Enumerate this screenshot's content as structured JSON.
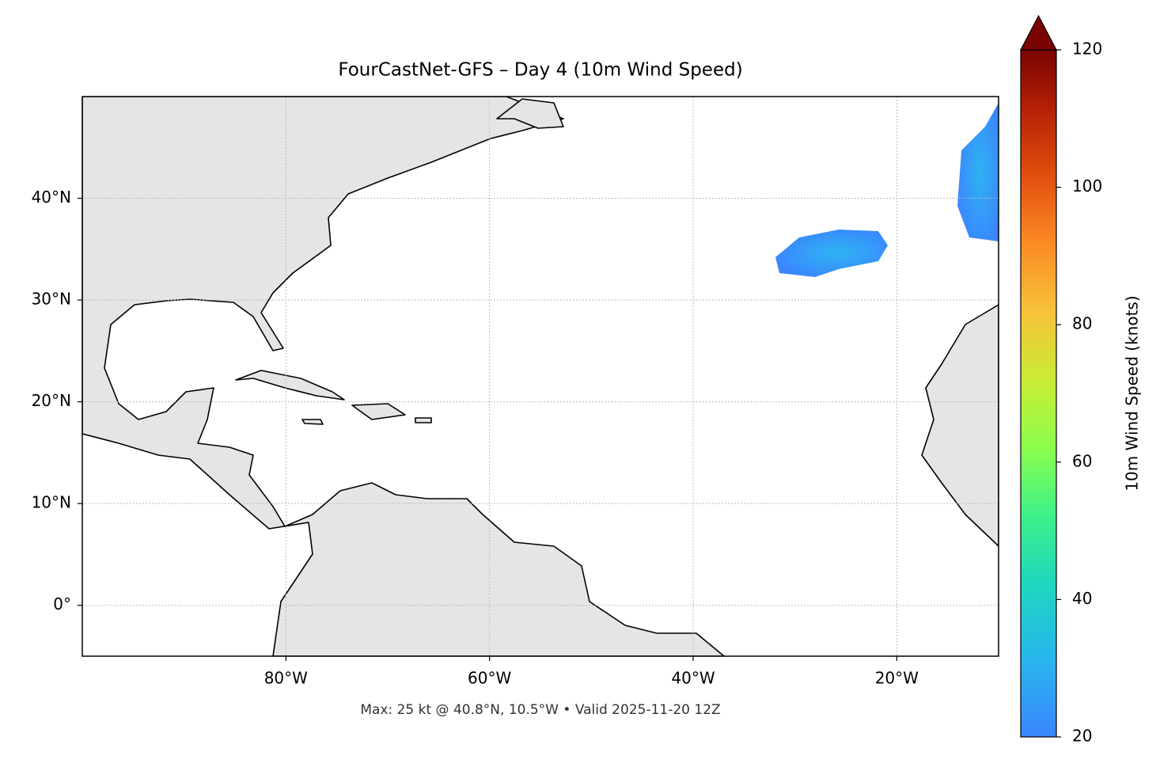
{
  "chart_data": {
    "type": "map",
    "title": "FourCastNet-GFS – Day 4 (10m Wind Speed)",
    "footer": "Max: 25 kt @ 40.8°N, 10.5°W • Valid 2025-11-20 12Z",
    "xlim": [
      -100,
      -10
    ],
    "ylim": [
      -5,
      50
    ],
    "xticks": [
      {
        "value": -80,
        "label": "80°W"
      },
      {
        "value": -60,
        "label": "60°W"
      },
      {
        "value": -40,
        "label": "40°W"
      },
      {
        "value": -20,
        "label": "20°W"
      }
    ],
    "yticks": [
      {
        "value": 0,
        "label": "0°"
      },
      {
        "value": 10,
        "label": "10°N"
      },
      {
        "value": 20,
        "label": "20°N"
      },
      {
        "value": 30,
        "label": "30°N"
      },
      {
        "value": 40,
        "label": "40°N"
      }
    ],
    "grid": true,
    "colorbar_label": "10m Wind Speed (knots)",
    "colorbar_lim": [
      20,
      120
    ],
    "colorbar_ticks": [
      20,
      40,
      60,
      80,
      100,
      120
    ]
  }
}
